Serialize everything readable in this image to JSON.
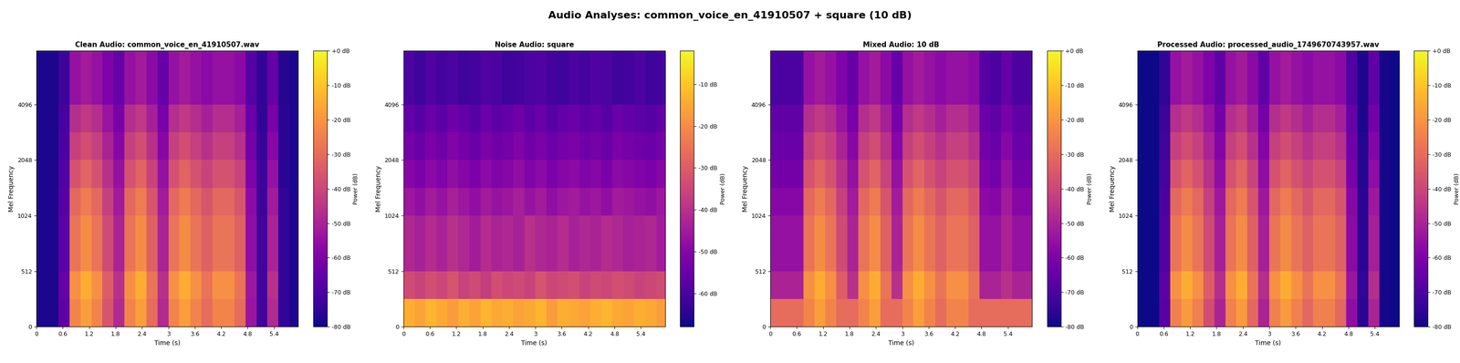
{
  "suptitle": "Audio Analyses: common_voice_en_41910507 + square (10 dB)",
  "chart_data": [
    {
      "type": "heatmap",
      "title": "Clean Audio: common_voice_en_41910507.wav",
      "x_label": "Time (s)",
      "y_label": "Mel Frequency",
      "log": "y",
      "xlim": [
        0,
        5.95
      ],
      "ylim": [
        0,
        8000
      ],
      "xticks": [
        0,
        0.6,
        1.2,
        1.8,
        2.4,
        3,
        3.6,
        4.2,
        4.8,
        5.4
      ],
      "yticks": [
        0,
        512,
        1024,
        2048,
        4096
      ],
      "x_edges": [
        0,
        0.25,
        0.5,
        0.75,
        1.0,
        1.25,
        1.5,
        1.75,
        2.0,
        2.25,
        2.5,
        2.75,
        3.0,
        3.25,
        3.5,
        3.75,
        4.0,
        4.25,
        4.5,
        4.75,
        5.0,
        5.25,
        5.5,
        5.75,
        5.95
      ],
      "y_edges": [
        0,
        256,
        512,
        1024,
        1448,
        2048,
        2896,
        4096,
        8000
      ],
      "cells": [
        [
          -78,
          -78,
          -66,
          -24,
          -18,
          -24,
          -36,
          -48,
          -24,
          -18,
          -30,
          -48,
          -24,
          -18,
          -24,
          -30,
          -24,
          -24,
          -30,
          -54,
          -72,
          -48,
          -75,
          -78
        ],
        [
          -78,
          -78,
          -65,
          -21,
          -15,
          -21,
          -34,
          -46,
          -21,
          -15,
          -28,
          -46,
          -21,
          -15,
          -21,
          -28,
          -21,
          -21,
          -28,
          -53,
          -72,
          -46,
          -75,
          -78
        ],
        [
          -78,
          -78,
          -67,
          -28,
          -22,
          -28,
          -39,
          -50,
          -28,
          -22,
          -33,
          -50,
          -28,
          -22,
          -28,
          -33,
          -28,
          -28,
          -33,
          -56,
          -72,
          -50,
          -75,
          -78
        ],
        [
          -78,
          -78,
          -68,
          -31,
          -26,
          -31,
          -42,
          -52,
          -31,
          -26,
          -36,
          -52,
          -31,
          -26,
          -31,
          -36,
          -31,
          -31,
          -36,
          -57,
          -73,
          -52,
          -75,
          -78
        ],
        [
          -78,
          -78,
          -69,
          -37,
          -32,
          -37,
          -46,
          -55,
          -37,
          -32,
          -41,
          -55,
          -37,
          -32,
          -37,
          -41,
          -37,
          -37,
          -41,
          -60,
          -73,
          -55,
          -76,
          -78
        ],
        [
          -78,
          -78,
          -70,
          -42,
          -38,
          -42,
          -50,
          -58,
          -42,
          -38,
          -46,
          -58,
          -42,
          -38,
          -42,
          -46,
          -42,
          -42,
          -46,
          -62,
          -74,
          -58,
          -76,
          -78
        ],
        [
          -78,
          -78,
          -71,
          -47,
          -44,
          -47,
          -54,
          -61,
          -47,
          -44,
          -51,
          -61,
          -47,
          -44,
          -47,
          -51,
          -47,
          -47,
          -51,
          -64,
          -75,
          -61,
          -76,
          -78
        ],
        [
          -78,
          -78,
          -73,
          -55,
          -52,
          -55,
          -60,
          -65,
          -55,
          -52,
          -57,
          -65,
          -55,
          -52,
          -55,
          -57,
          -55,
          -55,
          -57,
          -68,
          -75,
          -65,
          -77,
          -78
        ]
      ],
      "colorbar": {
        "label": "Power (dB)",
        "range": [
          -80,
          0
        ],
        "ticks": [
          {
            "value": 0,
            "label": "+0 dB"
          },
          {
            "value": -10,
            "label": "-10 dB"
          },
          {
            "value": -20,
            "label": "-20 dB"
          },
          {
            "value": -30,
            "label": "-30 dB"
          },
          {
            "value": -40,
            "label": "-40 dB"
          },
          {
            "value": -50,
            "label": "-50 dB"
          },
          {
            "value": -60,
            "label": "-60 dB"
          },
          {
            "value": -70,
            "label": "-70 dB"
          },
          {
            "value": -80,
            "label": "-80 dB"
          }
        ]
      }
    },
    {
      "type": "heatmap",
      "title": "Noise Audio: square",
      "x_label": "Time (s)",
      "y_label": "Mel Frequency",
      "log": "y",
      "xlim": [
        0,
        5.95
      ],
      "ylim": [
        0,
        8000
      ],
      "xticks": [
        0,
        0.6,
        1.2,
        1.8,
        2.4,
        3,
        3.6,
        4.2,
        4.8,
        5.4
      ],
      "yticks": [
        0,
        512,
        1024,
        2048,
        4096
      ],
      "x_edges": [
        0,
        0.25,
        0.5,
        0.75,
        1.0,
        1.25,
        1.5,
        1.75,
        2.0,
        2.25,
        2.5,
        2.75,
        3.0,
        3.25,
        3.5,
        3.75,
        4.0,
        4.25,
        4.5,
        4.75,
        5.0,
        5.25,
        5.5,
        5.75,
        5.95
      ],
      "y_edges": [
        0,
        256,
        512,
        1024,
        1448,
        2048,
        2896,
        4096,
        8000
      ],
      "cells": [
        [
          -14,
          -16,
          -13,
          -15,
          -17,
          -14,
          -16,
          -13,
          -15,
          -14,
          -16,
          -15,
          -13,
          -17,
          -14,
          -15,
          -16,
          -14,
          -13,
          -15,
          -16,
          -14,
          -15,
          -17
        ],
        [
          -34,
          -36,
          -33,
          -35,
          -32,
          -36,
          -34,
          -37,
          -33,
          -35,
          -34,
          -36,
          -32,
          -35,
          -34,
          -33,
          -36,
          -34,
          -35,
          -33,
          -34,
          -36,
          -35,
          -34
        ],
        [
          -42,
          -44,
          -41,
          -43,
          -40,
          -42,
          -45,
          -41,
          -43,
          -42,
          -44,
          -40,
          -42,
          -43,
          -41,
          -44,
          -42,
          -43,
          -41,
          -42,
          -44,
          -43,
          -42,
          -45
        ],
        [
          -46,
          -48,
          -45,
          -47,
          -44,
          -46,
          -48,
          -45,
          -47,
          -46,
          -44,
          -47,
          -45,
          -48,
          -46,
          -45,
          -47,
          -46,
          -48,
          -45,
          -46,
          -47,
          -48,
          -46
        ],
        [
          -50,
          -52,
          -49,
          -51,
          -48,
          -50,
          -52,
          -49,
          -51,
          -50,
          -48,
          -51,
          -49,
          -52,
          -50,
          -49,
          -51,
          -50,
          -52,
          -49,
          -50,
          -51,
          -52,
          -50
        ],
        [
          -53,
          -55,
          -52,
          -54,
          -51,
          -53,
          -55,
          -52,
          -54,
          -53,
          -51,
          -54,
          -52,
          -55,
          -53,
          -52,
          -54,
          -53,
          -55,
          -52,
          -53,
          -54,
          -55,
          -53
        ],
        [
          -56,
          -58,
          -55,
          -57,
          -54,
          -56,
          -58,
          -55,
          -57,
          -56,
          -54,
          -57,
          -55,
          -58,
          -56,
          -55,
          -57,
          -56,
          -58,
          -55,
          -56,
          -57,
          -58,
          -56
        ],
        [
          -60,
          -62,
          -59,
          -61,
          -60,
          -62,
          -61,
          -59,
          -60,
          -62,
          -61,
          -60,
          -59,
          -61,
          -62,
          -60,
          -61,
          -59,
          -60,
          -62,
          -61,
          -60,
          -62,
          -61
        ]
      ],
      "colorbar": {
        "label": "Power (dB)",
        "range": [
          -68,
          -2
        ],
        "ticks": [
          {
            "value": -10,
            "label": "-10 dB"
          },
          {
            "value": -20,
            "label": "-20 dB"
          },
          {
            "value": -30,
            "label": "-30 dB"
          },
          {
            "value": -40,
            "label": "-40 dB"
          },
          {
            "value": -50,
            "label": "-50 dB"
          },
          {
            "value": -60,
            "label": "-60 dB"
          }
        ]
      }
    },
    {
      "type": "heatmap",
      "title": "Mixed Audio: 10 dB",
      "x_label": "Time (s)",
      "y_label": "Mel Frequency",
      "log": "y",
      "xlim": [
        0,
        5.95
      ],
      "ylim": [
        0,
        8000
      ],
      "xticks": [
        0,
        0.6,
        1.2,
        1.8,
        2.4,
        3,
        3.6,
        4.2,
        4.8,
        5.4
      ],
      "yticks": [
        0,
        512,
        1024,
        2048,
        4096
      ],
      "x_edges": [
        0,
        0.25,
        0.5,
        0.75,
        1.0,
        1.25,
        1.5,
        1.75,
        2.0,
        2.25,
        2.5,
        2.75,
        3.0,
        3.25,
        3.5,
        3.75,
        4.0,
        4.25,
        4.5,
        4.75,
        5.0,
        5.25,
        5.5,
        5.75,
        5.95
      ],
      "y_edges": [
        0,
        256,
        512,
        1024,
        1448,
        2048,
        2896,
        4096,
        8000
      ],
      "cells": [
        [
          -30,
          -30,
          -30,
          -24,
          -18,
          -24,
          -30,
          -30,
          -24,
          -18,
          -30,
          -30,
          -24,
          -18,
          -24,
          -30,
          -24,
          -24,
          -30,
          -30,
          -30,
          -30,
          -30,
          -30
        ],
        [
          -50,
          -50,
          -50,
          -21,
          -15,
          -21,
          -34,
          -46,
          -21,
          -15,
          -28,
          -46,
          -21,
          -15,
          -21,
          -28,
          -21,
          -21,
          -28,
          -50,
          -50,
          -46,
          -50,
          -50
        ],
        [
          -55,
          -55,
          -55,
          -28,
          -22,
          -28,
          -39,
          -50,
          -28,
          -22,
          -33,
          -50,
          -28,
          -22,
          -28,
          -33,
          -28,
          -28,
          -33,
          -55,
          -55,
          -50,
          -55,
          -55
        ],
        [
          -58,
          -58,
          -58,
          -31,
          -26,
          -31,
          -42,
          -52,
          -31,
          -26,
          -36,
          -52,
          -31,
          -26,
          -31,
          -36,
          -31,
          -31,
          -36,
          -57,
          -58,
          -52,
          -58,
          -58
        ],
        [
          -62,
          -62,
          -62,
          -37,
          -32,
          -37,
          -46,
          -55,
          -37,
          -32,
          -41,
          -55,
          -37,
          -32,
          -37,
          -41,
          -37,
          -37,
          -41,
          -60,
          -62,
          -55,
          -62,
          -62
        ],
        [
          -64,
          -64,
          -64,
          -42,
          -38,
          -42,
          -50,
          -58,
          -42,
          -38,
          -46,
          -58,
          -42,
          -38,
          -42,
          -46,
          -42,
          -42,
          -46,
          -62,
          -64,
          -58,
          -64,
          -64
        ],
        [
          -66,
          -66,
          -66,
          -47,
          -44,
          -47,
          -54,
          -61,
          -47,
          -44,
          -51,
          -61,
          -47,
          -44,
          -47,
          -51,
          -47,
          -47,
          -51,
          -64,
          -66,
          -61,
          -66,
          -66
        ],
        [
          -70,
          -70,
          -70,
          -55,
          -52,
          -55,
          -60,
          -65,
          -55,
          -52,
          -57,
          -65,
          -55,
          -52,
          -55,
          -57,
          -55,
          -55,
          -57,
          -68,
          -70,
          -65,
          -70,
          -70
        ]
      ],
      "colorbar": {
        "label": "Power (dB)",
        "range": [
          -80,
          0
        ],
        "ticks": [
          {
            "value": 0,
            "label": "+0 dB"
          },
          {
            "value": -10,
            "label": "-10 dB"
          },
          {
            "value": -20,
            "label": "-20 dB"
          },
          {
            "value": -30,
            "label": "-30 dB"
          },
          {
            "value": -40,
            "label": "-40 dB"
          },
          {
            "value": -50,
            "label": "-50 dB"
          },
          {
            "value": -60,
            "label": "-60 dB"
          },
          {
            "value": -70,
            "label": "-70 dB"
          },
          {
            "value": -80,
            "label": "-80 dB"
          }
        ]
      }
    },
    {
      "type": "heatmap",
      "title": "Processed Audio: processed_audio_1749670743957.wav",
      "x_label": "Time (s)",
      "y_label": "Mel Frequency",
      "log": "y",
      "xlim": [
        0,
        5.95
      ],
      "ylim": [
        0,
        8000
      ],
      "xticks": [
        0,
        0.6,
        1.2,
        1.8,
        2.4,
        3,
        3.6,
        4.2,
        4.8,
        5.4
      ],
      "yticks": [
        0,
        512,
        1024,
        2048,
        4096
      ],
      "x_edges": [
        0,
        0.25,
        0.5,
        0.75,
        1.0,
        1.25,
        1.5,
        1.75,
        2.0,
        2.25,
        2.5,
        2.75,
        3.0,
        3.25,
        3.5,
        3.75,
        4.0,
        4.25,
        4.5,
        4.75,
        5.0,
        5.25,
        5.5,
        5.75,
        5.95
      ],
      "y_edges": [
        0,
        256,
        512,
        1024,
        1448,
        2048,
        2896,
        4096,
        8000
      ],
      "cells": [
        [
          -80,
          -80,
          -68,
          -25,
          -19,
          -25,
          -38,
          -50,
          -25,
          -19,
          -31,
          -50,
          -25,
          -19,
          -25,
          -31,
          -25,
          -25,
          -31,
          -56,
          -76,
          -50,
          -79,
          -80
        ],
        [
          -80,
          -80,
          -67,
          -21,
          -15,
          -21,
          -34,
          -47,
          -21,
          -15,
          -28,
          -47,
          -21,
          -15,
          -21,
          -28,
          -21,
          -21,
          -28,
          -54,
          -75,
          -47,
          -79,
          -80
        ],
        [
          -80,
          -80,
          -69,
          -28,
          -22,
          -28,
          -39,
          -51,
          -28,
          -22,
          -33,
          -51,
          -28,
          -22,
          -28,
          -33,
          -28,
          -28,
          -33,
          -57,
          -76,
          -51,
          -79,
          -80
        ],
        [
          -80,
          -80,
          -70,
          -31,
          -26,
          -31,
          -42,
          -53,
          -31,
          -26,
          -36,
          -53,
          -31,
          -26,
          -31,
          -36,
          -31,
          -31,
          -36,
          -58,
          -76,
          -53,
          -79,
          -80
        ],
        [
          -80,
          -80,
          -71,
          -37,
          -32,
          -37,
          -46,
          -56,
          -37,
          -32,
          -41,
          -56,
          -37,
          -32,
          -37,
          -41,
          -37,
          -37,
          -41,
          -61,
          -77,
          -56,
          -79,
          -80
        ],
        [
          -80,
          -80,
          -72,
          -42,
          -38,
          -42,
          -50,
          -59,
          -42,
          -38,
          -46,
          -59,
          -42,
          -38,
          -42,
          -46,
          -42,
          -42,
          -46,
          -63,
          -77,
          -59,
          -79,
          -80
        ],
        [
          -80,
          -80,
          -73,
          -47,
          -44,
          -47,
          -54,
          -62,
          -47,
          -44,
          -51,
          -62,
          -47,
          -44,
          -47,
          -51,
          -47,
          -47,
          -51,
          -65,
          -78,
          -62,
          -79,
          -80
        ],
        [
          -80,
          -80,
          -75,
          -55,
          -52,
          -55,
          -60,
          -66,
          -55,
          -52,
          -57,
          -66,
          -55,
          -52,
          -55,
          -57,
          -55,
          -55,
          -57,
          -69,
          -78,
          -66,
          -79,
          -80
        ]
      ],
      "colorbar": {
        "label": "Power (dB)",
        "range": [
          -80,
          0
        ],
        "ticks": [
          {
            "value": 0,
            "label": "+0 dB"
          },
          {
            "value": -10,
            "label": "-10 dB"
          },
          {
            "value": -20,
            "label": "-20 dB"
          },
          {
            "value": -30,
            "label": "-30 dB"
          },
          {
            "value": -40,
            "label": "-40 dB"
          },
          {
            "value": -50,
            "label": "-50 dB"
          },
          {
            "value": -60,
            "label": "-60 dB"
          },
          {
            "value": -70,
            "label": "-70 dB"
          },
          {
            "value": -80,
            "label": "-80 dB"
          }
        ]
      }
    }
  ]
}
